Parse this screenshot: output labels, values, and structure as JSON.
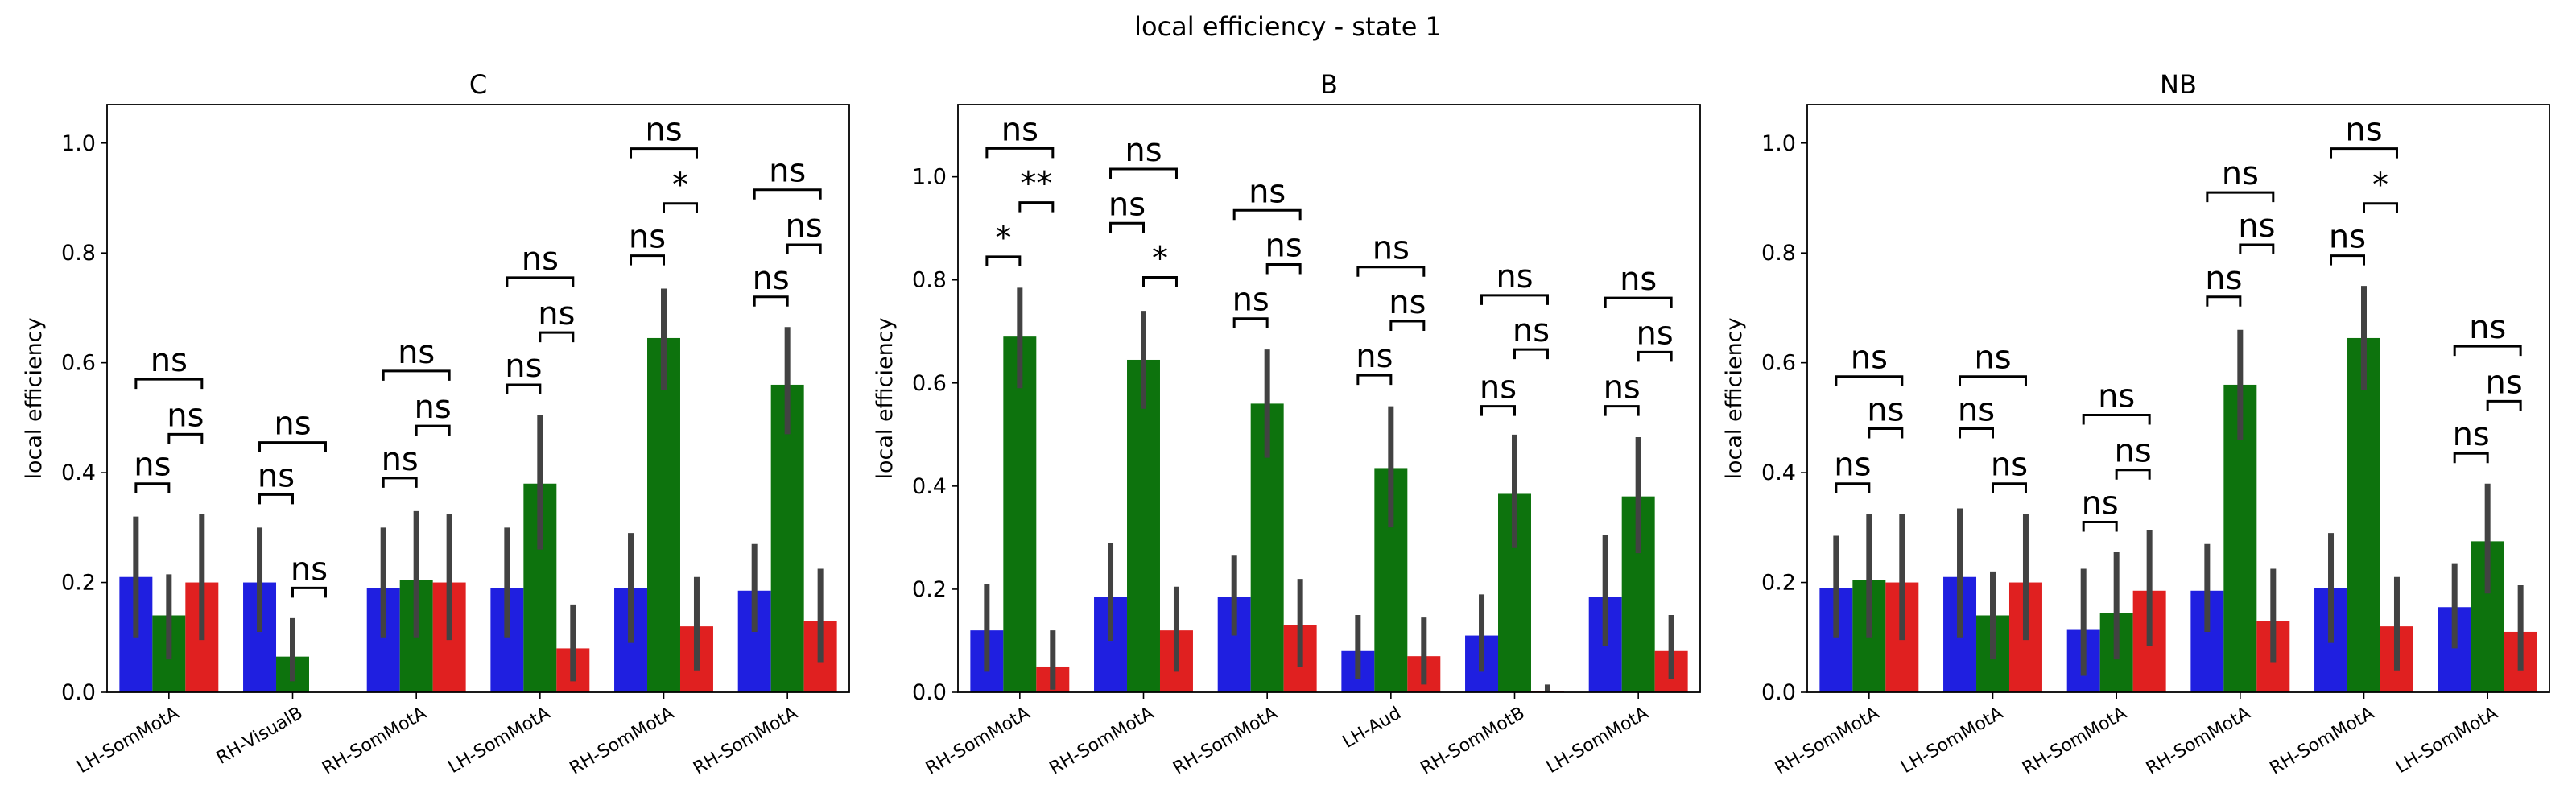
{
  "figure": {
    "suptitle": "local efficiency - state 1"
  },
  "chart_data": [
    {
      "type": "bar",
      "title": "C",
      "ylabel": "local efficiency",
      "xlabel": "",
      "ylim": [
        0,
        1.07
      ],
      "yticks": [
        0.0,
        0.2,
        0.4,
        0.6,
        0.8,
        1.0
      ],
      "categories": [
        "LH-SomMotA",
        "RH-VisualB",
        "RH-SomMotA",
        "LH-SomMotA",
        "RH-SomMotA",
        "RH-SomMotA"
      ],
      "colors": [
        "#1f1fe0",
        "#0d730d",
        "#e02020"
      ],
      "series": [
        {
          "values": [
            0.21,
            0.2,
            0.19,
            0.19,
            0.19,
            0.185
          ],
          "err_low": [
            0.1,
            0.11,
            0.1,
            0.1,
            0.09,
            0.11
          ],
          "err_high": [
            0.32,
            0.3,
            0.3,
            0.3,
            0.29,
            0.27
          ]
        },
        {
          "values": [
            0.14,
            0.065,
            0.205,
            0.38,
            0.645,
            0.56
          ],
          "err_low": [
            0.06,
            0.02,
            0.1,
            0.26,
            0.55,
            0.47
          ],
          "err_high": [
            0.215,
            0.135,
            0.33,
            0.505,
            0.735,
            0.665
          ]
        },
        {
          "values": [
            0.2,
            0.0,
            0.2,
            0.08,
            0.12,
            0.13
          ],
          "err_low": [
            0.095,
            0.0,
            0.095,
            0.02,
            0.04,
            0.055
          ],
          "err_high": [
            0.325,
            0.0,
            0.325,
            0.16,
            0.21,
            0.225
          ]
        }
      ],
      "annotations": [
        {
          "cat": 0,
          "a": 0,
          "b": 1,
          "y": 0.38,
          "label": "ns"
        },
        {
          "cat": 0,
          "a": 1,
          "b": 2,
          "y": 0.47,
          "label": "ns"
        },
        {
          "cat": 0,
          "a": 0,
          "b": 2,
          "y": 0.57,
          "label": "ns"
        },
        {
          "cat": 1,
          "a": 0,
          "b": 1,
          "y": 0.36,
          "label": "ns"
        },
        {
          "cat": 1,
          "a": 1,
          "b": 2,
          "y": 0.19,
          "label": "ns"
        },
        {
          "cat": 1,
          "a": 0,
          "b": 2,
          "y": 0.455,
          "label": "ns"
        },
        {
          "cat": 2,
          "a": 0,
          "b": 1,
          "y": 0.39,
          "label": "ns"
        },
        {
          "cat": 2,
          "a": 1,
          "b": 2,
          "y": 0.485,
          "label": "ns"
        },
        {
          "cat": 2,
          "a": 0,
          "b": 2,
          "y": 0.585,
          "label": "ns"
        },
        {
          "cat": 3,
          "a": 0,
          "b": 1,
          "y": 0.56,
          "label": "ns"
        },
        {
          "cat": 3,
          "a": 1,
          "b": 2,
          "y": 0.655,
          "label": "ns"
        },
        {
          "cat": 3,
          "a": 0,
          "b": 2,
          "y": 0.755,
          "label": "ns"
        },
        {
          "cat": 4,
          "a": 0,
          "b": 1,
          "y": 0.795,
          "label": "ns"
        },
        {
          "cat": 4,
          "a": 1,
          "b": 2,
          "y": 0.89,
          "label": "*"
        },
        {
          "cat": 4,
          "a": 0,
          "b": 2,
          "y": 0.99,
          "label": "ns"
        },
        {
          "cat": 5,
          "a": 0,
          "b": 1,
          "y": 0.72,
          "label": "ns"
        },
        {
          "cat": 5,
          "a": 1,
          "b": 2,
          "y": 0.815,
          "label": "ns"
        },
        {
          "cat": 5,
          "a": 0,
          "b": 2,
          "y": 0.915,
          "label": "ns"
        }
      ]
    },
    {
      "type": "bar",
      "title": "B",
      "ylabel": "local efficiency",
      "xlabel": "",
      "ylim": [
        0,
        1.14
      ],
      "yticks": [
        0.0,
        0.2,
        0.4,
        0.6,
        0.8,
        1.0
      ],
      "categories": [
        "RH-SomMotA",
        "RH-SomMotA",
        "RH-SomMotA",
        "LH-Aud",
        "RH-SomMotB",
        "LH-SomMotA"
      ],
      "colors": [
        "#1f1fe0",
        "#0d730d",
        "#e02020"
      ],
      "series": [
        {
          "values": [
            0.12,
            0.185,
            0.185,
            0.08,
            0.11,
            0.185
          ],
          "err_low": [
            0.04,
            0.1,
            0.11,
            0.025,
            0.04,
            0.09
          ],
          "err_high": [
            0.21,
            0.29,
            0.265,
            0.15,
            0.19,
            0.305
          ]
        },
        {
          "values": [
            0.69,
            0.645,
            0.56,
            0.435,
            0.385,
            0.38
          ],
          "err_low": [
            0.59,
            0.55,
            0.455,
            0.32,
            0.28,
            0.27
          ],
          "err_high": [
            0.785,
            0.74,
            0.665,
            0.555,
            0.5,
            0.495
          ]
        },
        {
          "values": [
            0.05,
            0.12,
            0.13,
            0.07,
            0.003,
            0.08
          ],
          "err_low": [
            0.005,
            0.04,
            0.05,
            0.015,
            0.0,
            0.025
          ],
          "err_high": [
            0.12,
            0.205,
            0.22,
            0.145,
            0.015,
            0.15
          ]
        }
      ],
      "annotations": [
        {
          "cat": 0,
          "a": 0,
          "b": 1,
          "y": 0.845,
          "label": "*"
        },
        {
          "cat": 0,
          "a": 1,
          "b": 2,
          "y": 0.95,
          "label": "**"
        },
        {
          "cat": 0,
          "a": 0,
          "b": 2,
          "y": 1.055,
          "label": "ns"
        },
        {
          "cat": 1,
          "a": 0,
          "b": 1,
          "y": 0.91,
          "label": "ns"
        },
        {
          "cat": 1,
          "a": 1,
          "b": 2,
          "y": 0.805,
          "label": "*"
        },
        {
          "cat": 1,
          "a": 0,
          "b": 2,
          "y": 1.015,
          "label": "ns"
        },
        {
          "cat": 2,
          "a": 0,
          "b": 1,
          "y": 0.725,
          "label": "ns"
        },
        {
          "cat": 2,
          "a": 1,
          "b": 2,
          "y": 0.83,
          "label": "ns"
        },
        {
          "cat": 2,
          "a": 0,
          "b": 2,
          "y": 0.935,
          "label": "ns"
        },
        {
          "cat": 3,
          "a": 0,
          "b": 1,
          "y": 0.615,
          "label": "ns"
        },
        {
          "cat": 3,
          "a": 1,
          "b": 2,
          "y": 0.72,
          "label": "ns"
        },
        {
          "cat": 3,
          "a": 0,
          "b": 2,
          "y": 0.825,
          "label": "ns"
        },
        {
          "cat": 4,
          "a": 0,
          "b": 1,
          "y": 0.555,
          "label": "ns"
        },
        {
          "cat": 4,
          "a": 1,
          "b": 2,
          "y": 0.665,
          "label": "ns"
        },
        {
          "cat": 4,
          "a": 0,
          "b": 2,
          "y": 0.77,
          "label": "ns"
        },
        {
          "cat": 5,
          "a": 0,
          "b": 1,
          "y": 0.555,
          "label": "ns"
        },
        {
          "cat": 5,
          "a": 1,
          "b": 2,
          "y": 0.66,
          "label": "ns"
        },
        {
          "cat": 5,
          "a": 0,
          "b": 2,
          "y": 0.765,
          "label": "ns"
        }
      ]
    },
    {
      "type": "bar",
      "title": "NB",
      "ylabel": "local efficiency",
      "xlabel": "",
      "ylim": [
        0,
        1.07
      ],
      "yticks": [
        0.0,
        0.2,
        0.4,
        0.6,
        0.8,
        1.0
      ],
      "categories": [
        "RH-SomMotA",
        "LH-SomMotA",
        "RH-SomMotA",
        "RH-SomMotA",
        "RH-SomMotA",
        "LH-SomMotA"
      ],
      "colors": [
        "#1f1fe0",
        "#0d730d",
        "#e02020"
      ],
      "series": [
        {
          "values": [
            0.19,
            0.21,
            0.115,
            0.185,
            0.19,
            0.155
          ],
          "err_low": [
            0.1,
            0.1,
            0.03,
            0.11,
            0.09,
            0.08
          ],
          "err_high": [
            0.285,
            0.335,
            0.225,
            0.27,
            0.29,
            0.235
          ]
        },
        {
          "values": [
            0.205,
            0.14,
            0.145,
            0.56,
            0.645,
            0.275
          ],
          "err_low": [
            0.1,
            0.06,
            0.06,
            0.46,
            0.55,
            0.18
          ],
          "err_high": [
            0.325,
            0.22,
            0.255,
            0.66,
            0.74,
            0.38
          ]
        },
        {
          "values": [
            0.2,
            0.2,
            0.185,
            0.13,
            0.12,
            0.11
          ],
          "err_low": [
            0.095,
            0.095,
            0.085,
            0.055,
            0.04,
            0.04
          ],
          "err_high": [
            0.325,
            0.325,
            0.295,
            0.225,
            0.21,
            0.195
          ]
        }
      ],
      "annotations": [
        {
          "cat": 0,
          "a": 0,
          "b": 1,
          "y": 0.38,
          "label": "ns"
        },
        {
          "cat": 0,
          "a": 1,
          "b": 2,
          "y": 0.48,
          "label": "ns"
        },
        {
          "cat": 0,
          "a": 0,
          "b": 2,
          "y": 0.575,
          "label": "ns"
        },
        {
          "cat": 1,
          "a": 0,
          "b": 1,
          "y": 0.48,
          "label": "ns"
        },
        {
          "cat": 1,
          "a": 1,
          "b": 2,
          "y": 0.38,
          "label": "ns"
        },
        {
          "cat": 1,
          "a": 0,
          "b": 2,
          "y": 0.575,
          "label": "ns"
        },
        {
          "cat": 2,
          "a": 0,
          "b": 1,
          "y": 0.31,
          "label": "ns"
        },
        {
          "cat": 2,
          "a": 1,
          "b": 2,
          "y": 0.405,
          "label": "ns"
        },
        {
          "cat": 2,
          "a": 0,
          "b": 2,
          "y": 0.505,
          "label": "ns"
        },
        {
          "cat": 3,
          "a": 0,
          "b": 1,
          "y": 0.72,
          "label": "ns"
        },
        {
          "cat": 3,
          "a": 1,
          "b": 2,
          "y": 0.815,
          "label": "ns"
        },
        {
          "cat": 3,
          "a": 0,
          "b": 2,
          "y": 0.91,
          "label": "ns"
        },
        {
          "cat": 4,
          "a": 0,
          "b": 1,
          "y": 0.795,
          "label": "ns"
        },
        {
          "cat": 4,
          "a": 1,
          "b": 2,
          "y": 0.89,
          "label": "*"
        },
        {
          "cat": 4,
          "a": 0,
          "b": 2,
          "y": 0.99,
          "label": "ns"
        },
        {
          "cat": 5,
          "a": 0,
          "b": 1,
          "y": 0.435,
          "label": "ns"
        },
        {
          "cat": 5,
          "a": 1,
          "b": 2,
          "y": 0.53,
          "label": "ns"
        },
        {
          "cat": 5,
          "a": 0,
          "b": 2,
          "y": 0.63,
          "label": "ns"
        }
      ]
    }
  ]
}
